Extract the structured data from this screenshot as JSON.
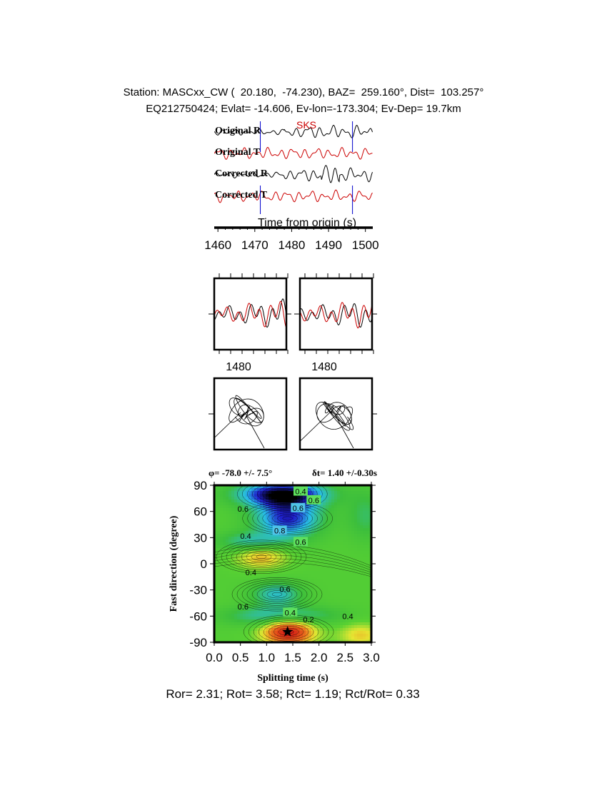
{
  "header": {
    "line1": "Station: MASCxx_CW (  20.180,  -74.230), BAZ=  259.160°, Dist=  103.257°",
    "line2": "EQ212750424; Evlat= -14.606, Ev-lon=-173.304; Ev-Dep= 19.7km"
  },
  "footer": "Ror= 2.31; Rot= 3.58; Rct= 1.19; Rct/Rot= 0.33",
  "colors": {
    "radial": "#000000",
    "transverse": "#cc0000",
    "marker": "#0000cc",
    "phase_label": "#cc0000"
  },
  "chart_data": [
    {
      "type": "line",
      "panel": "seismograms",
      "phase_label": "SKS",
      "series": [
        {
          "name": "Original R",
          "color": "#000000"
        },
        {
          "name": "Original T",
          "color": "#cc0000"
        },
        {
          "name": "Corrected R",
          "color": "#000000"
        },
        {
          "name": "Corrected T",
          "color": "#cc0000"
        }
      ],
      "xlabel": "Time from origin (s)",
      "xticks": [
        1460,
        1470,
        1480,
        1490,
        1500
      ],
      "xlim": [
        1459,
        1502
      ],
      "window_markers": [
        1471.5,
        1496.5
      ]
    },
    {
      "type": "line",
      "panel": "particle-waveforms",
      "subplots": [
        {
          "name": "original",
          "xtick_label": "1480"
        },
        {
          "name": "corrected",
          "xtick_label": "1480"
        }
      ]
    },
    {
      "type": "scatter",
      "panel": "particle-motion",
      "subplots": [
        {
          "name": "original"
        },
        {
          "name": "corrected"
        }
      ]
    },
    {
      "type": "heatmap",
      "panel": "grid-search",
      "title_phi": "φ= -78.0 +/- 7.5°",
      "title_dt": "δt= 1.40 +/-0.30s",
      "xlabel": "Splitting time (s)",
      "ylabel": "Fast direction (degree)",
      "xlim": [
        0.0,
        3.0
      ],
      "ylim": [
        -90,
        90
      ],
      "xticks": [
        "0.0",
        "0.5",
        "1.0",
        "1.5",
        "2.0",
        "2.5",
        "3.0"
      ],
      "yticks": [
        "90",
        "60",
        "30",
        "0",
        "-30",
        "-60",
        "-90"
      ],
      "best_fit": {
        "dt": 1.4,
        "phi": -78.0
      },
      "contour_labels": [
        {
          "text": "0.4",
          "dt": 1.65,
          "phi": 83,
          "color": "#5ee05e"
        },
        {
          "text": "0.6",
          "dt": 1.9,
          "phi": 73,
          "color": "#5ee05e"
        },
        {
          "text": "0.6",
          "dt": 1.6,
          "phi": 64,
          "color": "#4fc4e8"
        },
        {
          "text": "0.8",
          "dt": 1.25,
          "phi": 38,
          "color": "#4fc4e8"
        },
        {
          "text": "0.6",
          "dt": 1.65,
          "phi": 25,
          "color": "#5ee05e"
        },
        {
          "text": "0.4",
          "dt": 0.6,
          "phi": 32,
          "color": ""
        },
        {
          "text": "0.6",
          "dt": 0.55,
          "phi": 63,
          "color": ""
        },
        {
          "text": "0.4",
          "dt": 0.7,
          "phi": -10,
          "color": ""
        },
        {
          "text": "0.6",
          "dt": 1.35,
          "phi": -29,
          "color": ""
        },
        {
          "text": "0.6",
          "dt": 0.55,
          "phi": -49,
          "color": ""
        },
        {
          "text": "0.4",
          "dt": 1.45,
          "phi": -56,
          "color": "#5ee05e"
        },
        {
          "text": "0.2",
          "dt": 1.8,
          "phi": -64,
          "color": ""
        },
        {
          "text": "0.4",
          "dt": 2.55,
          "phi": -60,
          "color": ""
        }
      ]
    }
  ]
}
